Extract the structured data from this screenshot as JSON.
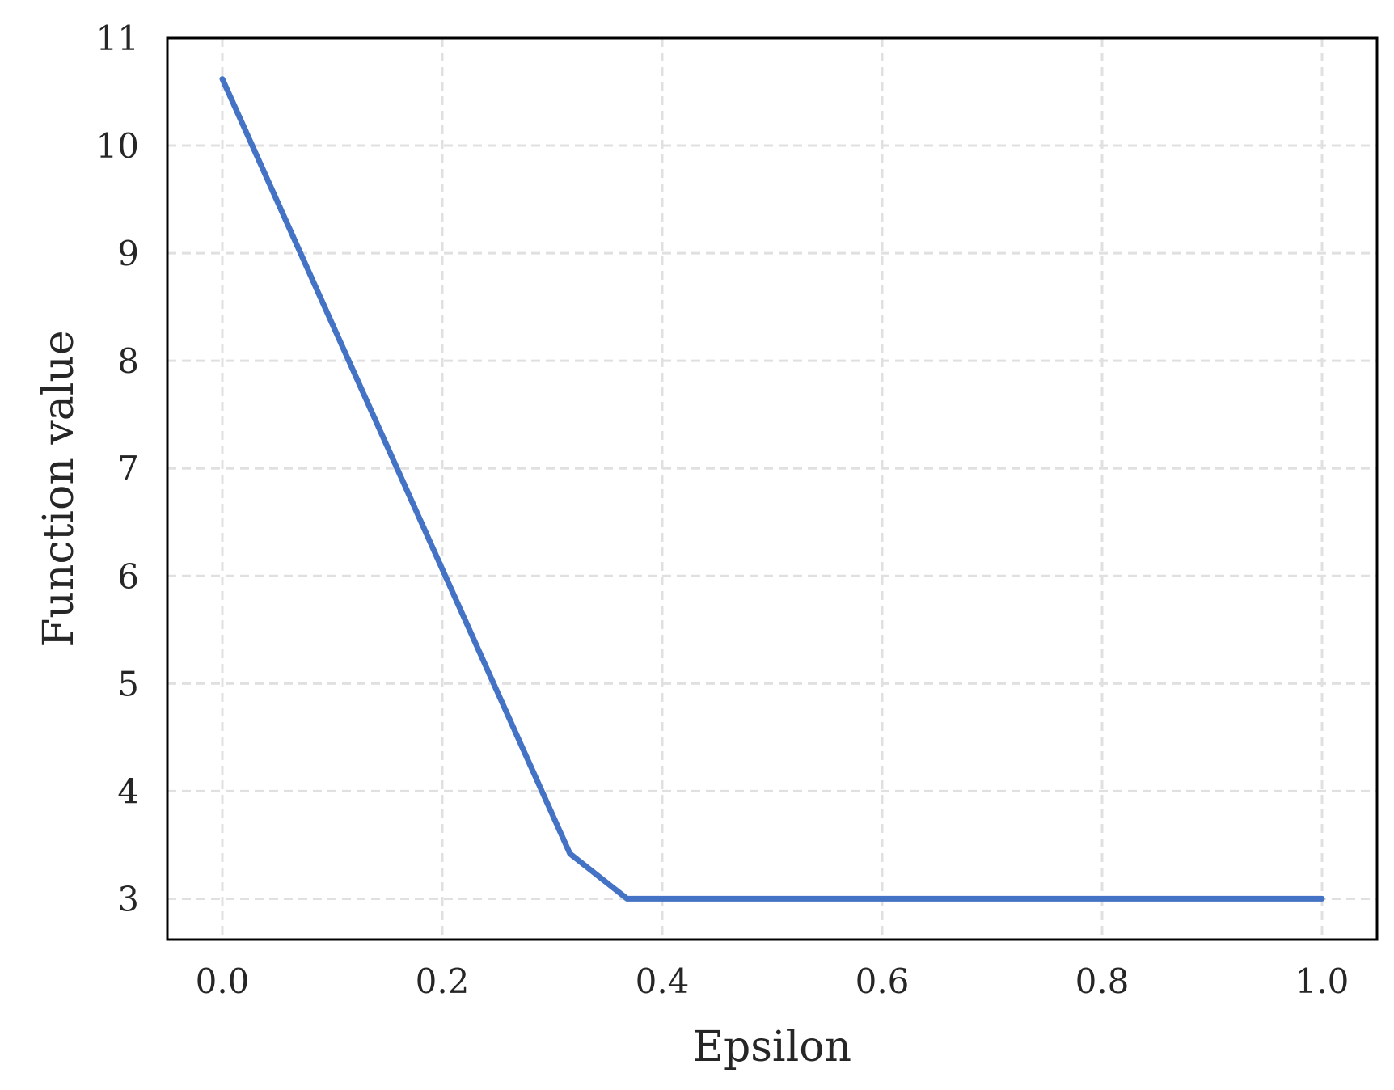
{
  "chart_data": {
    "type": "line",
    "title": "",
    "xlabel": "Epsilon",
    "ylabel": "Function value",
    "xlim": [
      -0.05,
      1.05
    ],
    "ylim": [
      2.62,
      11.0
    ],
    "xticks": [
      0.0,
      0.2,
      0.4,
      0.6,
      0.8,
      1.0
    ],
    "xtick_labels": [
      "0.0",
      "0.2",
      "0.4",
      "0.6",
      "0.8",
      "1.0"
    ],
    "yticks": [
      3,
      4,
      5,
      6,
      7,
      8,
      9,
      10,
      11
    ],
    "ytick_labels": [
      "3",
      "4",
      "5",
      "6",
      "7",
      "8",
      "9",
      "10",
      "11"
    ],
    "grid": true,
    "legend": "none",
    "series": [
      {
        "color": "#4472c4",
        "x": [
          0.0,
          0.316,
          0.368,
          1.0
        ],
        "y": [
          10.62,
          3.42,
          3.0,
          3.0
        ]
      }
    ]
  }
}
